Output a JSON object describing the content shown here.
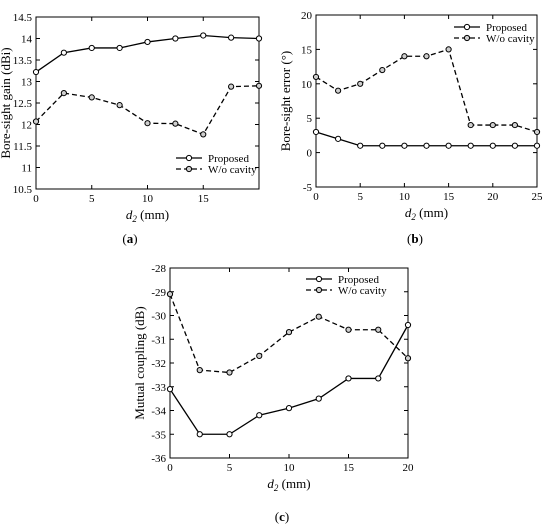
{
  "chart_data": [
    {
      "type": "line",
      "caption": "(a)",
      "caption_letter": "a",
      "xlabel": "(mm)",
      "xlabel_var": "d",
      "xlabel_sub": "2",
      "ylabel": "Bore-sight gain (dBi)",
      "xlim": [
        0,
        20
      ],
      "ylim": [
        10.5,
        14.5
      ],
      "xticks": [
        0,
        5,
        10,
        15
      ],
      "yticks": [
        10.5,
        11,
        11.5,
        12,
        12.5,
        13,
        13.5,
        14,
        14.5
      ],
      "ytick_labels": [
        "10.5",
        "11",
        "11.5",
        "12",
        "12.5",
        "13",
        "13.5",
        "14",
        "14.5"
      ],
      "legend_position": "bottom-right",
      "x": [
        0,
        2.5,
        5,
        7.5,
        10,
        12.5,
        15,
        17.5,
        20
      ],
      "series": [
        {
          "name": "Proposed",
          "style": "solid",
          "values": [
            13.22,
            13.67,
            13.78,
            13.78,
            13.92,
            14.0,
            14.07,
            14.02,
            14.0
          ]
        },
        {
          "name": "W/o cavity",
          "style": "dashed",
          "values": [
            12.07,
            12.73,
            12.63,
            12.45,
            12.03,
            12.02,
            11.77,
            12.88,
            12.9
          ]
        }
      ]
    },
    {
      "type": "line",
      "caption": "(b)",
      "caption_letter": "b",
      "xlabel": "(mm)",
      "xlabel_var": "d",
      "xlabel_sub": "2",
      "ylabel": "Bore-sight error (°)",
      "xlim": [
        0,
        25
      ],
      "ylim": [
        -5,
        20
      ],
      "xticks": [
        0,
        5,
        10,
        15,
        20,
        25
      ],
      "yticks": [
        -5,
        0,
        5,
        10,
        15,
        20
      ],
      "ytick_labels": [
        "-5",
        "0",
        "5",
        "10",
        "15",
        "20"
      ],
      "legend_position": "top-right",
      "x": [
        0,
        2.5,
        5,
        7.5,
        10,
        12.5,
        15,
        17.5,
        20,
        22.5,
        25
      ],
      "series": [
        {
          "name": "Proposed",
          "style": "solid",
          "values": [
            3,
            2,
            1,
            1,
            1,
            1,
            1,
            1,
            1,
            1,
            1
          ]
        },
        {
          "name": "W/o cavity",
          "style": "dashed",
          "values": [
            11,
            9,
            10,
            12,
            14,
            14,
            15,
            4,
            4,
            4,
            3
          ]
        }
      ]
    },
    {
      "type": "line",
      "caption": "(c)",
      "caption_letter": "c",
      "xlabel": "(mm)",
      "xlabel_var": "d",
      "xlabel_sub": "2",
      "ylabel": "Mutual coupling (dB)",
      "xlim": [
        0,
        20
      ],
      "ylim": [
        -36,
        -28
      ],
      "xticks": [
        0,
        5,
        10,
        15,
        20
      ],
      "yticks": [
        -36,
        -35,
        -34,
        -33,
        -32,
        -31,
        -30,
        -29,
        -28
      ],
      "ytick_labels": [
        "-36",
        "-35",
        "-34",
        "-33",
        "-32",
        "-31",
        "-30",
        "-29",
        "-28"
      ],
      "legend_position": "top-right",
      "x": [
        0,
        2.5,
        5,
        7.5,
        10,
        12.5,
        15,
        17.5,
        20
      ],
      "series": [
        {
          "name": "Proposed",
          "style": "solid",
          "values": [
            -33.1,
            -35.0,
            -35.0,
            -34.2,
            -33.9,
            -33.5,
            -32.65,
            -32.65,
            -30.4
          ]
        },
        {
          "name": "W/o cavity",
          "style": "dashed",
          "values": [
            -29.1,
            -32.3,
            -32.4,
            -31.7,
            -30.7,
            -30.05,
            -30.6,
            -30.6,
            -31.8
          ]
        }
      ]
    }
  ]
}
